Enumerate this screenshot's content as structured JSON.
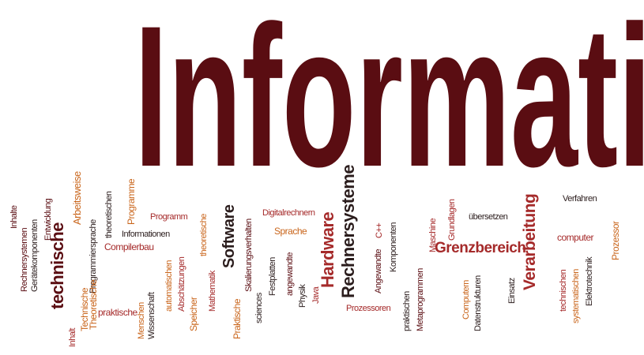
{
  "title": "Informatik",
  "colors": {
    "dark": "#5a0d12",
    "red": "#a52a2a",
    "orange": "#c9651b",
    "black": "#2b1d1d"
  },
  "words": {
    "w0": "Inhalte",
    "w1": "Rechnersystemen",
    "w2": "Gerätekomponenten",
    "w3": "Entwicklung",
    "w4": "technische",
    "w5": "Inhalt",
    "w6": "Technische",
    "w7": "Arbeitsweise",
    "w8": "Programmiersprache",
    "w9": "theoretischen",
    "w10": "Programme",
    "w11": "Theoretische",
    "w12": "praktische",
    "w13": "Compilerbau",
    "w14": "Menschen",
    "w15": "Wissenschaft",
    "w16": "Programm",
    "w17": "Informationen",
    "w18": "automatischen",
    "w19": "Abschätzungen",
    "w20": "Speicher",
    "w21": "theoretische",
    "w22": "Mathematik",
    "w23": "Software",
    "w24": "Praktische",
    "w25": "Skalierungsverhalten",
    "w26": "sciences",
    "w27": "Festplatten",
    "w28": "Digitalrechnern",
    "w29": "Sprache",
    "w30": "angewandte",
    "w31": "Physik",
    "w32": "Java",
    "w33": "Hardware",
    "w34": "Rechnersysteme",
    "w35": "Prozessoren",
    "w36": "C++",
    "w37": "Angewandte",
    "w38": "Komponenten",
    "w39": "praktischen",
    "w40": "Metaprogrammen",
    "w41": "Maschine",
    "w42": "Grundlagen",
    "w43": "Grenzbereich",
    "w44": "Computern",
    "w45": "Datenstrukturen",
    "w46": "übersetzen",
    "w47": "Einsatz",
    "w48": "Verarbeitung",
    "w49": "Verfahren",
    "w50": "computer",
    "w51": "technischen",
    "w52": "systematischen",
    "w53": "Elektrotechnik",
    "w54": "Prozessor"
  }
}
